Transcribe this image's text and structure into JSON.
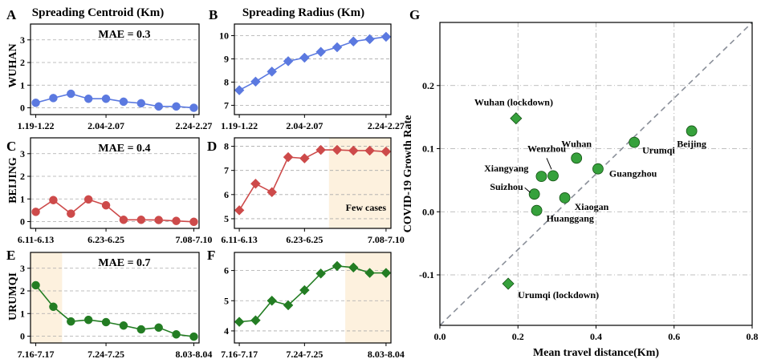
{
  "titles": {
    "col_centroid": "Spreading Centroid (Km)",
    "col_radius": "Spreading Radius (Km)"
  },
  "letters": {
    "a": "A",
    "b": "B",
    "c": "C",
    "d": "D",
    "e": "E",
    "f": "F",
    "g": "G"
  },
  "rows": {
    "wuhan": "WUHAN",
    "beijing": "BEIJING",
    "urumqi": "URUMQI"
  },
  "colors": {
    "blue": "#5b79e0",
    "red": "#cd4a4a",
    "green": "#237d23",
    "shade": "#fdf1de",
    "grid": "#aaaaaa",
    "scatter": "#36a13c"
  },
  "chart_data": [
    {
      "id": "A",
      "type": "line",
      "marker": "circle",
      "color": "#5b79e0",
      "annotation": "MAE = 0.3",
      "ylim": [
        -0.3,
        3.7
      ],
      "yticks": [
        0,
        1,
        2,
        3
      ],
      "xtick_labels": [
        "1.19-1.22",
        "2.04-2.07",
        "2.24-2.27"
      ],
      "xtick_index": [
        0,
        4,
        9
      ],
      "values": [
        0.22,
        0.43,
        0.62,
        0.4,
        0.4,
        0.27,
        0.2,
        0.06,
        0.06,
        0.0
      ]
    },
    {
      "id": "B",
      "type": "line",
      "marker": "diamond",
      "color": "#5b79e0",
      "ylim": [
        6.6,
        10.5
      ],
      "yticks": [
        7,
        8,
        9,
        10
      ],
      "xtick_labels": [
        "1.19-1.22",
        "2.04-2.07",
        "2.24-2.27"
      ],
      "xtick_index": [
        0,
        4,
        9
      ],
      "values": [
        7.65,
        8.02,
        8.45,
        8.9,
        9.05,
        9.3,
        9.5,
        9.75,
        9.85,
        9.95
      ]
    },
    {
      "id": "C",
      "type": "line",
      "marker": "circle",
      "color": "#cd4a4a",
      "annotation": "MAE = 0.4",
      "ylim": [
        -0.3,
        3.7
      ],
      "yticks": [
        0,
        1,
        2,
        3
      ],
      "xtick_labels": [
        "6.11-6.13",
        "6.23-6.25",
        "7.08-7.10"
      ],
      "xtick_index": [
        0,
        4,
        9
      ],
      "values": [
        0.43,
        0.95,
        0.35,
        0.98,
        0.72,
        0.08,
        0.08,
        0.07,
        0.03,
        -0.01
      ]
    },
    {
      "id": "D",
      "type": "line",
      "marker": "diamond",
      "color": "#cd4a4a",
      "annotation": "Few cases",
      "shade_from_index": 6,
      "ylim": [
        4.6,
        8.35
      ],
      "yticks": [
        5,
        6,
        7,
        8
      ],
      "xtick_labels": [
        "6.11-6.13",
        "6.23-6.25",
        "7.08-7.10"
      ],
      "xtick_index": [
        0,
        4,
        9
      ],
      "values": [
        5.35,
        6.45,
        6.1,
        7.55,
        7.5,
        7.85,
        7.85,
        7.82,
        7.82,
        7.78
      ]
    },
    {
      "id": "E",
      "type": "line",
      "marker": "circle",
      "color": "#237d23",
      "annotation": "MAE = 0.7",
      "shade_to_index": 2,
      "ylim": [
        -0.3,
        3.7
      ],
      "yticks": [
        0,
        1,
        2,
        3
      ],
      "xtick_labels": [
        "7.16-7.17",
        "7.24-7.25",
        "8.03-8.04"
      ],
      "xtick_index": [
        0,
        4,
        9
      ],
      "values": [
        2.25,
        1.3,
        0.65,
        0.72,
        0.62,
        0.47,
        0.3,
        0.38,
        0.08,
        -0.02
      ]
    },
    {
      "id": "F",
      "type": "line",
      "marker": "diamond",
      "color": "#237d23",
      "shade_from_index": 7,
      "ylim": [
        3.6,
        6.6
      ],
      "yticks": [
        4,
        5,
        6
      ],
      "xtick_labels": [
        "7.16-7.17",
        "7.24-7.25",
        "8.03-8.04"
      ],
      "xtick_index": [
        0,
        4,
        9
      ],
      "values": [
        4.3,
        4.35,
        5.0,
        4.85,
        5.35,
        5.9,
        6.15,
        6.1,
        5.92,
        5.92
      ]
    },
    {
      "id": "G",
      "type": "scatter",
      "xlabel": "Mean travel distance(Km)",
      "ylabel": "COVID-19 Growth Rate",
      "xlim": [
        0.0,
        0.8
      ],
      "ylim": [
        -0.18,
        0.3
      ],
      "xticks": [
        0.0,
        0.2,
        0.4,
        0.6,
        0.8
      ],
      "xtick_labels": [
        "0.0",
        "0.2",
        "0.4",
        "0.6",
        "0.8"
      ],
      "yticks": [
        -0.1,
        0.0,
        0.1,
        0.2
      ],
      "ytick_labels": [
        "-0.1",
        "0.0",
        "0.1",
        "0.2"
      ],
      "diagonal": true,
      "points": [
        {
          "label": "Wuhan (lockdown)",
          "x": 0.195,
          "y": 0.148,
          "marker": "diamond"
        },
        {
          "label": "Urumqi (lockdown)",
          "x": 0.175,
          "y": -0.114,
          "marker": "diamond"
        },
        {
          "label": "Wuhan",
          "x": 0.35,
          "y": 0.085,
          "marker": "circle"
        },
        {
          "label": "Urumqi",
          "x": 0.498,
          "y": 0.11,
          "marker": "circle"
        },
        {
          "label": "Beijing",
          "x": 0.645,
          "y": 0.128,
          "marker": "circle"
        },
        {
          "label": "Wenzhou",
          "x": 0.29,
          "y": 0.057,
          "marker": "circle"
        },
        {
          "label": "Xiangyang",
          "x": 0.26,
          "y": 0.056,
          "marker": "circle"
        },
        {
          "label": "Guangzhou",
          "x": 0.405,
          "y": 0.068,
          "marker": "circle"
        },
        {
          "label": "Suizhou",
          "x": 0.242,
          "y": 0.028,
          "marker": "circle"
        },
        {
          "label": "Xiaogan",
          "x": 0.32,
          "y": 0.022,
          "marker": "circle"
        },
        {
          "label": "Huanggang",
          "x": 0.248,
          "y": 0.002,
          "marker": "circle"
        }
      ]
    }
  ]
}
